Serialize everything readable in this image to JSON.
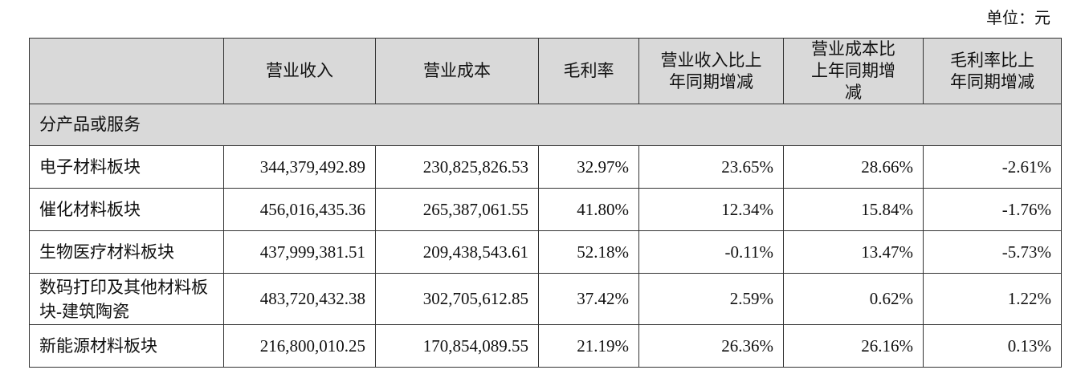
{
  "unit_label": "单位：元",
  "headers": [
    "",
    "营业收入",
    "营业成本",
    "毛利率",
    "营业收入比上年同期增减",
    "营业成本比上年同期增减",
    "毛利率比上年同期增减"
  ],
  "section": "分产品或服务",
  "rows": [
    {
      "name": "电子材料板块",
      "revenue": "344,379,492.89",
      "cost": "230,825,826.53",
      "margin": "32.97%",
      "rev_change": "23.65%",
      "cost_change": "28.66%",
      "margin_change": "-2.61%"
    },
    {
      "name": "催化材料板块",
      "revenue": "456,016,435.36",
      "cost": "265,387,061.55",
      "margin": "41.80%",
      "rev_change": "12.34%",
      "cost_change": "15.84%",
      "margin_change": "-1.76%"
    },
    {
      "name": "生物医疗材料板块",
      "revenue": "437,999,381.51",
      "cost": "209,438,543.61",
      "margin": "52.18%",
      "rev_change": "-0.11%",
      "cost_change": "13.47%",
      "margin_change": "-5.73%"
    },
    {
      "name": "数码打印及其他材料板块-建筑陶瓷",
      "revenue": "483,720,432.38",
      "cost": "302,705,612.85",
      "margin": "37.42%",
      "rev_change": "2.59%",
      "cost_change": "0.62%",
      "margin_change": "1.22%"
    },
    {
      "name": "新能源材料板块",
      "revenue": "216,800,010.25",
      "cost": "170,854,089.55",
      "margin": "21.19%",
      "rev_change": "26.36%",
      "cost_change": "26.16%",
      "margin_change": "0.13%"
    }
  ]
}
